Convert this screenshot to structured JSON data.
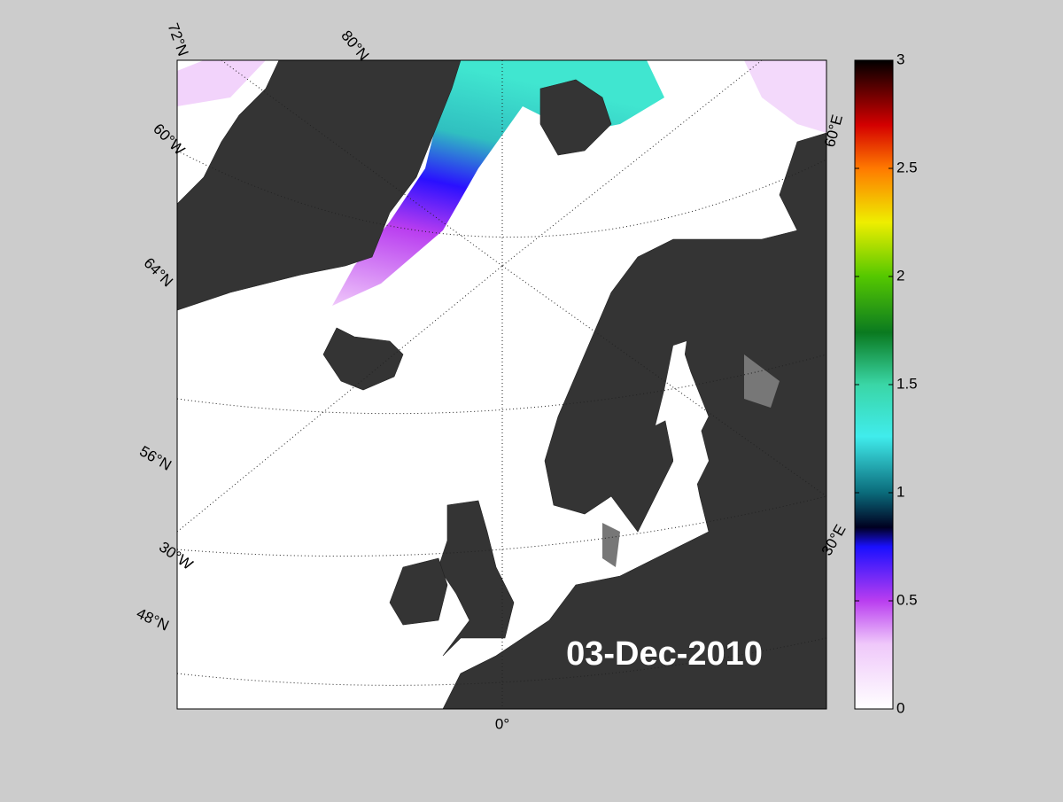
{
  "map": {
    "date": "03-Dec-2010",
    "grid_labels": [
      "72°N",
      "80°N",
      "60°W",
      "64°N",
      "56°N",
      "30°W",
      "48°N",
      "0°",
      "30°E",
      "60°E"
    ]
  },
  "colorbar": {
    "lim": [
      0,
      3
    ],
    "ticks": [
      0,
      0.5,
      1,
      1.5,
      2,
      2.5,
      3
    ]
  }
}
